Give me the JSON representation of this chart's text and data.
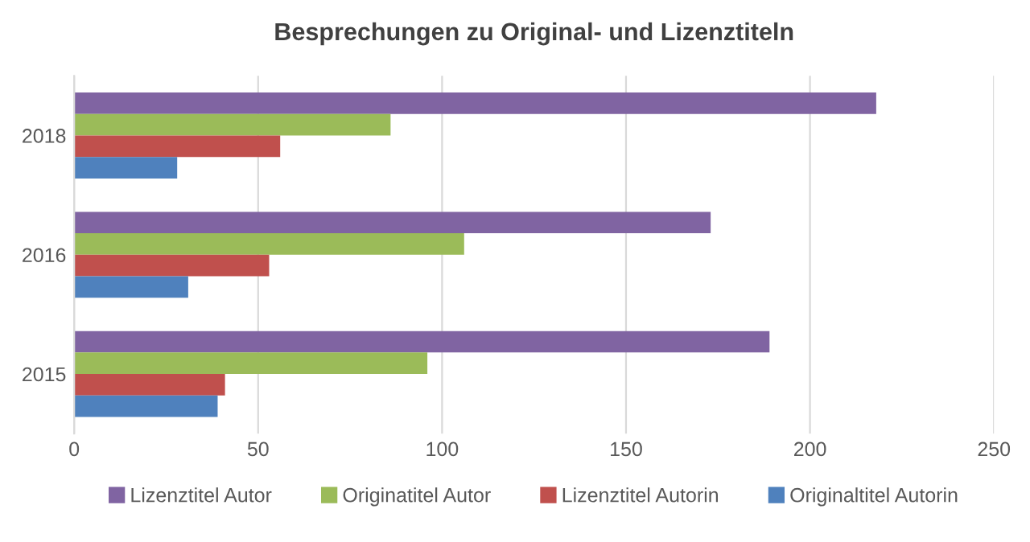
{
  "chart_data": {
    "type": "bar",
    "orientation": "horizontal",
    "title": "Besprechungen zu Original- und Lizenztiteln",
    "categories": [
      "2018",
      "2016",
      "2015"
    ],
    "series": [
      {
        "name": "Lizenztitel Autor",
        "color": "#8064a2",
        "values": [
          218,
          173,
          189
        ]
      },
      {
        "name": "Originatitel Autor",
        "color": "#9bbb59",
        "values": [
          86,
          106,
          96
        ]
      },
      {
        "name": "Lizenztitel Autorin",
        "color": "#c0504d",
        "values": [
          56,
          53,
          41
        ]
      },
      {
        "name": "Originaltitel Autorin",
        "color": "#4f81bd",
        "values": [
          28,
          31,
          39
        ]
      }
    ],
    "xlim": [
      0,
      250
    ],
    "xticks": [
      0,
      50,
      100,
      150,
      200,
      250
    ],
    "grid": "x",
    "legend": "bottom"
  }
}
